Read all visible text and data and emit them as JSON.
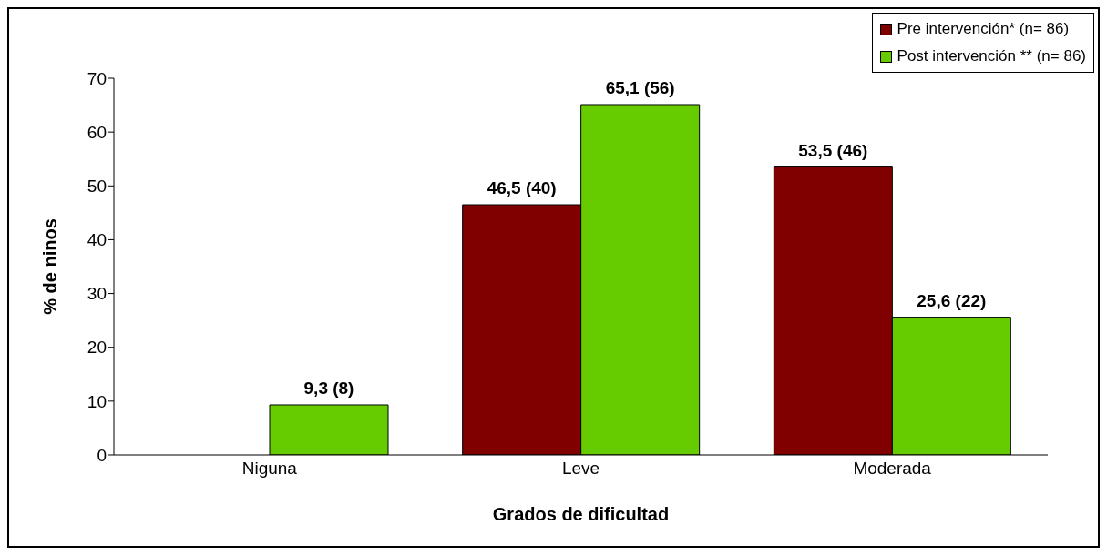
{
  "chart_data": {
    "type": "bar",
    "xlabel": "Grados de dificultad",
    "ylabel": "% de ninos",
    "categories": [
      "Niguna",
      "Leve",
      "Moderada"
    ],
    "series": [
      {
        "name": "Pre intervención* (n= 86)",
        "color": "#800000",
        "values": [
          null,
          46.5,
          53.5
        ],
        "value_labels": [
          null,
          "46,5 (40)",
          "53,5 (46)"
        ]
      },
      {
        "name": "Post intervención ** (n= 86)",
        "color": "#66cc00",
        "values": [
          9.3,
          65.1,
          25.6
        ],
        "value_labels": [
          "9,3 (8)",
          "65,1 (56)",
          "25,6 (22)"
        ]
      }
    ],
    "ylim": [
      0,
      70
    ],
    "yticks": [
      0,
      10,
      20,
      30,
      40,
      50,
      60,
      70
    ],
    "grid": false,
    "legend": "top right"
  }
}
